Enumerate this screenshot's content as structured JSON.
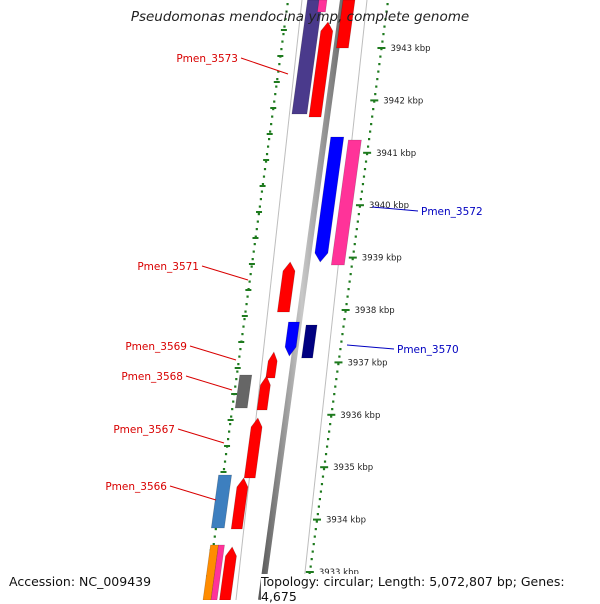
{
  "title": "Pseudomonas mendocina ymp, complete genome",
  "footer": {
    "accession": "Accession: NC_009439",
    "topology": "Topology: circular; Length: 5,072,807 bp; Genes: 4,675"
  },
  "colors": {
    "background": "#ffffff",
    "backbone": "#9a9a9a",
    "tick_dots": "#1e7a1e",
    "label_red": "#d80000",
    "label_blue": "#0000c0",
    "gene_red": "#ff0000",
    "gene_blue": "#0000ff",
    "gene_navy": "#000080",
    "gene_purple": "#4a3a8c",
    "gene_pink": "#ff3399",
    "gene_gray": "#666666",
    "gene_steelblue": "#3d7fbf",
    "gene_orange": "#ff8c00"
  },
  "scale": {
    "unit": "kbp",
    "ticks": [
      {
        "label": "3943 kbp",
        "kbp": 3943
      },
      {
        "label": "3942 kbp",
        "kbp": 3942
      },
      {
        "label": "3941 kbp",
        "kbp": 3941
      },
      {
        "label": "3940 kbp",
        "kbp": 3940
      },
      {
        "label": "3939 kbp",
        "kbp": 3939
      },
      {
        "label": "3938 kbp",
        "kbp": 3938
      },
      {
        "label": "3937 kbp",
        "kbp": 3937
      },
      {
        "label": "3936 kbp",
        "kbp": 3936
      },
      {
        "label": "3935 kbp",
        "kbp": 3935
      },
      {
        "label": "3934 kbp",
        "kbp": 3934
      },
      {
        "label": "3933 kbp",
        "kbp": 3933
      }
    ]
  },
  "gene_labels": [
    {
      "text": "Pmen_3573",
      "strand": "reverse",
      "color": "#d80000"
    },
    {
      "text": "Pmen_3572",
      "strand": "forward",
      "color": "#0000c0"
    },
    {
      "text": "Pmen_3571",
      "strand": "reverse",
      "color": "#d80000"
    },
    {
      "text": "Pmen_3570",
      "strand": "forward",
      "color": "#0000c0"
    },
    {
      "text": "Pmen_3569",
      "strand": "reverse",
      "color": "#d80000"
    },
    {
      "text": "Pmen_3568",
      "strand": "reverse",
      "color": "#d80000"
    },
    {
      "text": "Pmen_3567",
      "strand": "reverse",
      "color": "#d80000"
    },
    {
      "text": "Pmen_3566",
      "strand": "reverse",
      "color": "#d80000"
    }
  ]
}
